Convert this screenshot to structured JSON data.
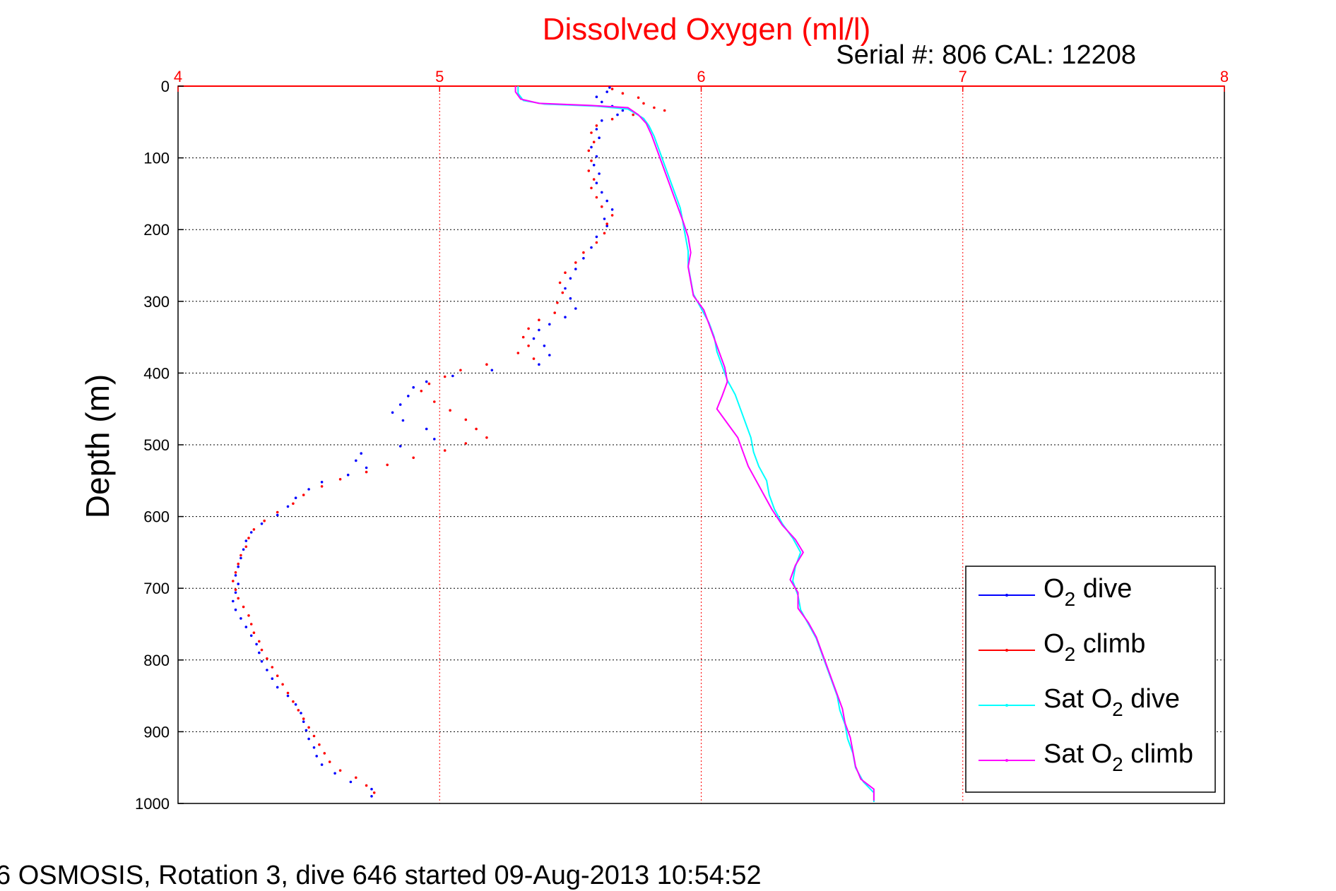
{
  "chart_data": {
    "type": "scatter",
    "title": "Dissolved Oxygen (ml/l)",
    "subtitle": "Serial #: 806  CAL: 12208",
    "ylabel": "Depth (m)",
    "xlabel": "",
    "footer": "6 OSMOSIS, Rotation 3, dive 646 started 09-Aug-2013 10:54:52",
    "xlim": [
      4,
      8
    ],
    "ylim": [
      0,
      1000
    ],
    "y_reversed": true,
    "x_axis_position": "top",
    "x_ticks": [
      4,
      5,
      6,
      7,
      8
    ],
    "y_ticks": [
      0,
      100,
      200,
      300,
      400,
      500,
      600,
      700,
      800,
      900,
      1000
    ],
    "grid": true,
    "legend_position": "bottom-right",
    "series": [
      {
        "name": "O2 dive",
        "label_main": "O",
        "label_sub": "2",
        "label_rest": " dive",
        "color": "#0000ff",
        "style": "points",
        "points": [
          [
            5.65,
            2
          ],
          [
            5.64,
            8
          ],
          [
            5.6,
            15
          ],
          [
            5.62,
            22
          ],
          [
            5.66,
            28
          ],
          [
            5.7,
            34
          ],
          [
            5.68,
            40
          ],
          [
            5.62,
            48
          ],
          [
            5.6,
            60
          ],
          [
            5.61,
            72
          ],
          [
            5.58,
            85
          ],
          [
            5.6,
            98
          ],
          [
            5.59,
            110
          ],
          [
            5.61,
            122
          ],
          [
            5.6,
            135
          ],
          [
            5.62,
            148
          ],
          [
            5.64,
            160
          ],
          [
            5.66,
            172
          ],
          [
            5.63,
            185
          ],
          [
            5.64,
            195
          ],
          [
            5.6,
            210
          ],
          [
            5.58,
            225
          ],
          [
            5.55,
            240
          ],
          [
            5.52,
            255
          ],
          [
            5.5,
            268
          ],
          [
            5.48,
            282
          ],
          [
            5.5,
            296
          ],
          [
            5.52,
            310
          ],
          [
            5.48,
            322
          ],
          [
            5.42,
            332
          ],
          [
            5.38,
            340
          ],
          [
            5.36,
            352
          ],
          [
            5.4,
            362
          ],
          [
            5.42,
            375
          ],
          [
            5.38,
            388
          ],
          [
            5.2,
            396
          ],
          [
            5.05,
            404
          ],
          [
            4.95,
            412
          ],
          [
            4.9,
            420
          ],
          [
            4.88,
            432
          ],
          [
            4.85,
            444
          ],
          [
            4.82,
            455
          ],
          [
            4.86,
            466
          ],
          [
            4.95,
            478
          ],
          [
            4.98,
            492
          ],
          [
            4.85,
            502
          ],
          [
            4.7,
            512
          ],
          [
            4.68,
            522
          ],
          [
            4.72,
            532
          ],
          [
            4.65,
            542
          ],
          [
            4.55,
            552
          ],
          [
            4.5,
            562
          ],
          [
            4.45,
            574
          ],
          [
            4.42,
            586
          ],
          [
            4.38,
            598
          ],
          [
            4.32,
            610
          ],
          [
            4.28,
            622
          ],
          [
            4.26,
            634
          ],
          [
            4.25,
            646
          ],
          [
            4.24,
            658
          ],
          [
            4.23,
            670
          ],
          [
            4.22,
            682
          ],
          [
            4.23,
            694
          ],
          [
            4.22,
            706
          ],
          [
            4.21,
            718
          ],
          [
            4.22,
            730
          ],
          [
            4.24,
            742
          ],
          [
            4.26,
            754
          ],
          [
            4.28,
            766
          ],
          [
            4.3,
            778
          ],
          [
            4.31,
            790
          ],
          [
            4.32,
            802
          ],
          [
            4.34,
            814
          ],
          [
            4.36,
            826
          ],
          [
            4.38,
            838
          ],
          [
            4.42,
            850
          ],
          [
            4.45,
            862
          ],
          [
            4.47,
            874
          ],
          [
            4.48,
            886
          ],
          [
            4.49,
            898
          ],
          [
            4.5,
            910
          ],
          [
            4.52,
            922
          ],
          [
            4.53,
            934
          ],
          [
            4.55,
            946
          ],
          [
            4.6,
            958
          ],
          [
            4.66,
            970
          ],
          [
            4.74,
            980
          ],
          [
            4.74,
            990
          ]
        ]
      },
      {
        "name": "O2 climb",
        "label_main": "O",
        "label_sub": "2",
        "label_rest": " climb",
        "color": "#ff0000",
        "style": "points",
        "points": [
          [
            5.66,
            4
          ],
          [
            5.7,
            10
          ],
          [
            5.76,
            16
          ],
          [
            5.78,
            24
          ],
          [
            5.82,
            30
          ],
          [
            5.86,
            34
          ],
          [
            5.74,
            40
          ],
          [
            5.66,
            46
          ],
          [
            5.6,
            55
          ],
          [
            5.58,
            65
          ],
          [
            5.59,
            78
          ],
          [
            5.57,
            90
          ],
          [
            5.58,
            104
          ],
          [
            5.57,
            118
          ],
          [
            5.59,
            130
          ],
          [
            5.58,
            142
          ],
          [
            5.6,
            155
          ],
          [
            5.62,
            168
          ],
          [
            5.66,
            180
          ],
          [
            5.64,
            192
          ],
          [
            5.63,
            205
          ],
          [
            5.6,
            218
          ],
          [
            5.55,
            232
          ],
          [
            5.52,
            246
          ],
          [
            5.48,
            260
          ],
          [
            5.46,
            274
          ],
          [
            5.47,
            288
          ],
          [
            5.45,
            302
          ],
          [
            5.44,
            316
          ],
          [
            5.38,
            326
          ],
          [
            5.34,
            338
          ],
          [
            5.32,
            350
          ],
          [
            5.34,
            362
          ],
          [
            5.3,
            372
          ],
          [
            5.36,
            380
          ],
          [
            5.18,
            388
          ],
          [
            5.08,
            396
          ],
          [
            5.02,
            405
          ],
          [
            4.96,
            415
          ],
          [
            4.93,
            425
          ],
          [
            4.98,
            440
          ],
          [
            5.04,
            452
          ],
          [
            5.1,
            465
          ],
          [
            5.14,
            478
          ],
          [
            5.18,
            490
          ],
          [
            5.1,
            498
          ],
          [
            5.02,
            508
          ],
          [
            4.9,
            518
          ],
          [
            4.8,
            528
          ],
          [
            4.72,
            538
          ],
          [
            4.62,
            548
          ],
          [
            4.55,
            558
          ],
          [
            4.48,
            570
          ],
          [
            4.44,
            582
          ],
          [
            4.38,
            594
          ],
          [
            4.33,
            606
          ],
          [
            4.29,
            618
          ],
          [
            4.27,
            630
          ],
          [
            4.26,
            642
          ],
          [
            4.24,
            654
          ],
          [
            4.23,
            666
          ],
          [
            4.22,
            678
          ],
          [
            4.21,
            690
          ],
          [
            4.22,
            702
          ],
          [
            4.23,
            714
          ],
          [
            4.25,
            726
          ],
          [
            4.27,
            738
          ],
          [
            4.28,
            750
          ],
          [
            4.29,
            762
          ],
          [
            4.31,
            774
          ],
          [
            4.32,
            786
          ],
          [
            4.34,
            798
          ],
          [
            4.36,
            810
          ],
          [
            4.38,
            822
          ],
          [
            4.4,
            834
          ],
          [
            4.42,
            846
          ],
          [
            4.44,
            858
          ],
          [
            4.46,
            870
          ],
          [
            4.48,
            882
          ],
          [
            4.5,
            894
          ],
          [
            4.52,
            906
          ],
          [
            4.54,
            918
          ],
          [
            4.56,
            930
          ],
          [
            4.58,
            942
          ],
          [
            4.62,
            954
          ],
          [
            4.68,
            964
          ],
          [
            4.72,
            975
          ],
          [
            4.75,
            985
          ]
        ]
      },
      {
        "name": "Sat O2 dive",
        "label_main": "Sat O",
        "label_sub": "2",
        "label_rest": " dive",
        "color": "#00ffff",
        "style": "line",
        "points": [
          [
            5.3,
            0
          ],
          [
            5.3,
            10
          ],
          [
            5.32,
            20
          ],
          [
            5.4,
            25
          ],
          [
            5.6,
            28
          ],
          [
            5.72,
            32
          ],
          [
            5.78,
            45
          ],
          [
            5.8,
            55
          ],
          [
            5.82,
            70
          ],
          [
            5.84,
            90
          ],
          [
            5.86,
            110
          ],
          [
            5.88,
            130
          ],
          [
            5.9,
            150
          ],
          [
            5.92,
            170
          ],
          [
            5.93,
            190
          ],
          [
            5.94,
            210
          ],
          [
            5.95,
            230
          ],
          [
            5.95,
            250
          ],
          [
            5.96,
            270
          ],
          [
            5.97,
            290
          ],
          [
            6.0,
            310
          ],
          [
            6.03,
            330
          ],
          [
            6.05,
            350
          ],
          [
            6.06,
            370
          ],
          [
            6.08,
            390
          ],
          [
            6.1,
            410
          ],
          [
            6.13,
            430
          ],
          [
            6.15,
            450
          ],
          [
            6.17,
            470
          ],
          [
            6.19,
            490
          ],
          [
            6.2,
            510
          ],
          [
            6.22,
            530
          ],
          [
            6.25,
            550
          ],
          [
            6.26,
            570
          ],
          [
            6.28,
            590
          ],
          [
            6.31,
            610
          ],
          [
            6.35,
            630
          ],
          [
            6.38,
            650
          ],
          [
            6.36,
            670
          ],
          [
            6.35,
            690
          ],
          [
            6.37,
            710
          ],
          [
            6.38,
            730
          ],
          [
            6.41,
            750
          ],
          [
            6.44,
            770
          ],
          [
            6.46,
            790
          ],
          [
            6.48,
            810
          ],
          [
            6.5,
            830
          ],
          [
            6.52,
            850
          ],
          [
            6.53,
            870
          ],
          [
            6.55,
            890
          ],
          [
            6.56,
            910
          ],
          [
            6.58,
            930
          ],
          [
            6.59,
            950
          ],
          [
            6.62,
            970
          ],
          [
            6.66,
            985
          ],
          [
            6.66,
            998
          ]
        ]
      },
      {
        "name": "Sat O2 climb",
        "label_main": "Sat O",
        "label_sub": "2",
        "label_rest": " climb",
        "color": "#ff00ff",
        "style": "line",
        "points": [
          [
            5.29,
            0
          ],
          [
            5.29,
            8
          ],
          [
            5.31,
            18
          ],
          [
            5.38,
            24
          ],
          [
            5.58,
            27
          ],
          [
            5.72,
            30
          ],
          [
            5.76,
            40
          ],
          [
            5.79,
            52
          ],
          [
            5.81,
            68
          ],
          [
            5.83,
            88
          ],
          [
            5.85,
            108
          ],
          [
            5.87,
            128
          ],
          [
            5.89,
            148
          ],
          [
            5.91,
            168
          ],
          [
            5.93,
            188
          ],
          [
            5.95,
            210
          ],
          [
            5.96,
            232
          ],
          [
            5.95,
            252
          ],
          [
            5.96,
            272
          ],
          [
            5.97,
            292
          ],
          [
            6.01,
            312
          ],
          [
            6.03,
            332
          ],
          [
            6.05,
            352
          ],
          [
            6.07,
            372
          ],
          [
            6.09,
            392
          ],
          [
            6.1,
            412
          ],
          [
            6.08,
            432
          ],
          [
            6.06,
            450
          ],
          [
            6.1,
            470
          ],
          [
            6.14,
            490
          ],
          [
            6.16,
            510
          ],
          [
            6.18,
            530
          ],
          [
            6.21,
            550
          ],
          [
            6.24,
            570
          ],
          [
            6.27,
            590
          ],
          [
            6.31,
            612
          ],
          [
            6.36,
            632
          ],
          [
            6.39,
            650
          ],
          [
            6.36,
            668
          ],
          [
            6.34,
            688
          ],
          [
            6.37,
            706
          ],
          [
            6.37,
            728
          ],
          [
            6.41,
            748
          ],
          [
            6.44,
            768
          ],
          [
            6.46,
            788
          ],
          [
            6.48,
            808
          ],
          [
            6.5,
            828
          ],
          [
            6.52,
            848
          ],
          [
            6.54,
            868
          ],
          [
            6.55,
            888
          ],
          [
            6.57,
            908
          ],
          [
            6.58,
            928
          ],
          [
            6.59,
            948
          ],
          [
            6.61,
            966
          ],
          [
            6.66,
            980
          ],
          [
            6.66,
            996
          ]
        ]
      }
    ]
  }
}
